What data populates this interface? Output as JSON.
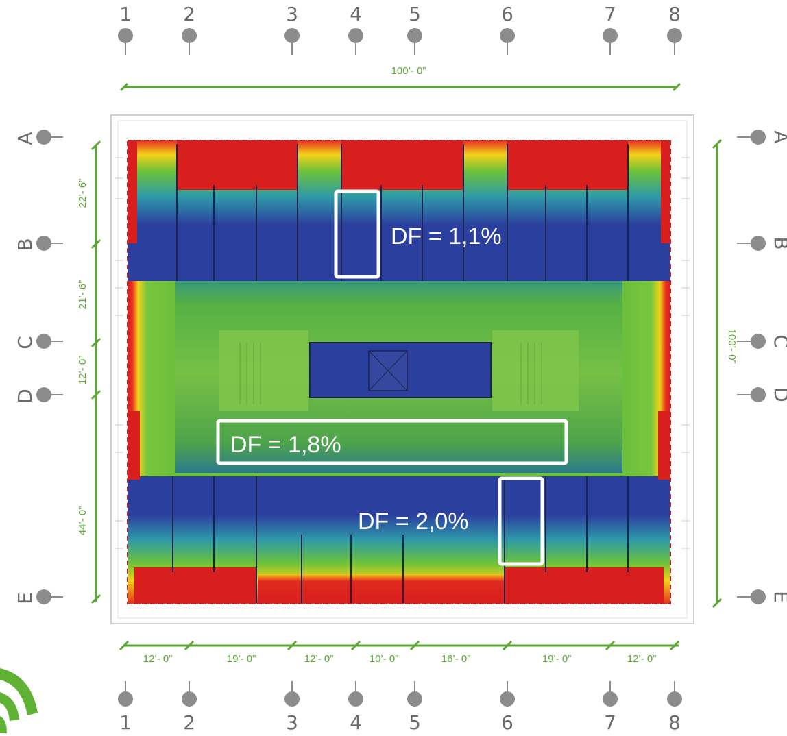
{
  "grid_columns": [
    "1",
    "2",
    "3",
    "4",
    "5",
    "6",
    "7",
    "8"
  ],
  "grid_rows": [
    "A",
    "B",
    "C",
    "D",
    "E"
  ],
  "dimensions": {
    "overall_width": "100’- 0”",
    "overall_depth": "100’- 0”",
    "bays_x": [
      "12’- 0”",
      "19’- 0”",
      "12’- 0”",
      "10’- 0”",
      "16’- 0”",
      "19’- 0”",
      "12’- 0”"
    ],
    "bays_y": [
      "22’- 6”",
      "21’- 6”",
      "12’- 0”",
      "44’- 0”"
    ]
  },
  "callouts": [
    {
      "label": "DF = 1,1%"
    },
    {
      "label": "DF = 1,8%"
    },
    {
      "label": "DF = 2,0%"
    }
  ],
  "colors": {
    "dimension": "#5aa832",
    "grid_marker": "#8c8c8c",
    "df_high": "#d91e1e",
    "df_mid": "#6abf3a",
    "df_low": "#2b3f9e",
    "outline": "#b0262a"
  }
}
